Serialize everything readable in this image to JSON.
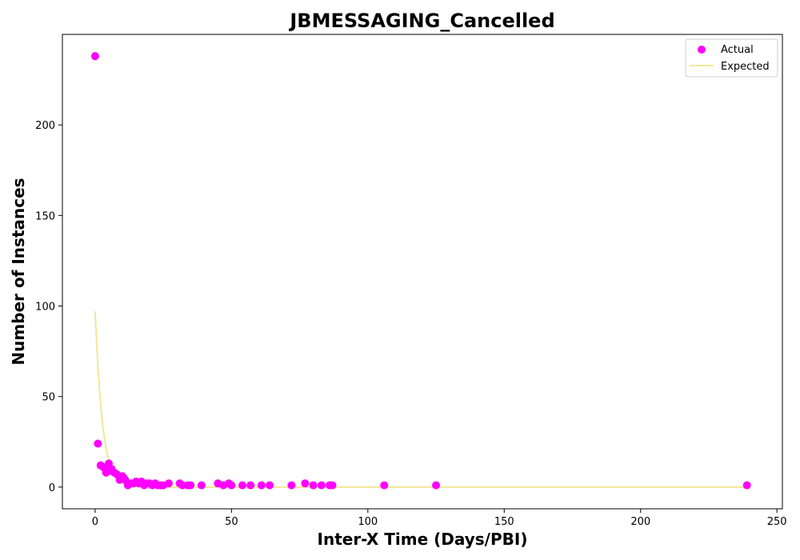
{
  "chart_data": {
    "type": "scatter",
    "title": "JBMESSAGING_Cancelled",
    "xlabel": "Inter-X Time (Days/PBI)",
    "ylabel": "Number of Instances",
    "xlim": [
      -12,
      252
    ],
    "ylim": [
      -12,
      250
    ],
    "xticks": [
      0,
      50,
      100,
      150,
      200,
      250
    ],
    "yticks": [
      0,
      50,
      100,
      150,
      200
    ],
    "grid": false,
    "legend_position": "top-right",
    "colors": {
      "actual": "#ff00ff",
      "expected": "#f0e68c"
    },
    "series": [
      {
        "name": "Actual",
        "kind": "scatter",
        "points": [
          [
            0,
            238
          ],
          [
            1,
            24
          ],
          [
            2,
            12
          ],
          [
            3,
            11
          ],
          [
            4,
            8
          ],
          [
            5,
            13
          ],
          [
            5.5,
            9
          ],
          [
            6,
            10
          ],
          [
            7,
            8
          ],
          [
            8,
            7
          ],
          [
            9,
            4
          ],
          [
            10,
            6
          ],
          [
            10.5,
            5
          ],
          [
            11,
            4
          ],
          [
            12,
            1
          ],
          [
            13,
            2
          ],
          [
            14,
            2
          ],
          [
            15,
            3
          ],
          [
            16,
            2
          ],
          [
            17,
            3
          ],
          [
            18,
            1
          ],
          [
            19,
            2
          ],
          [
            20,
            2
          ],
          [
            21,
            1
          ],
          [
            22,
            2
          ],
          [
            23,
            1
          ],
          [
            24,
            1
          ],
          [
            25,
            1
          ],
          [
            27,
            2
          ],
          [
            31,
            2
          ],
          [
            32,
            1
          ],
          [
            34,
            1
          ],
          [
            35,
            1
          ],
          [
            39,
            1
          ],
          [
            45,
            2
          ],
          [
            47,
            1
          ],
          [
            49,
            2
          ],
          [
            50,
            1
          ],
          [
            54,
            1
          ],
          [
            57,
            1
          ],
          [
            61,
            1
          ],
          [
            64,
            1
          ],
          [
            72,
            1
          ],
          [
            77,
            2
          ],
          [
            80,
            1
          ],
          [
            83,
            1
          ],
          [
            86,
            1
          ],
          [
            87,
            1
          ],
          [
            106,
            1
          ],
          [
            125,
            1
          ],
          [
            239,
            1
          ]
        ]
      },
      {
        "name": "Expected",
        "kind": "line",
        "x": [
          0,
          1,
          2,
          3,
          4,
          5,
          6,
          7,
          8,
          9,
          10,
          11,
          12,
          13,
          14,
          15,
          16,
          17,
          18,
          19,
          20,
          22,
          24,
          26,
          30,
          40,
          60,
          100,
          150,
          200,
          239
        ],
        "y": [
          97,
          66.5,
          45.6,
          31.3,
          21.4,
          14.7,
          10.1,
          6.9,
          4.7,
          3.2,
          2.2,
          1.5,
          1.0,
          0.7,
          0.5,
          0.3,
          0.2,
          0.15,
          0.1,
          0.07,
          0.05,
          0.02,
          0.01,
          0,
          0,
          0,
          0,
          0,
          0,
          0,
          0
        ]
      }
    ]
  }
}
